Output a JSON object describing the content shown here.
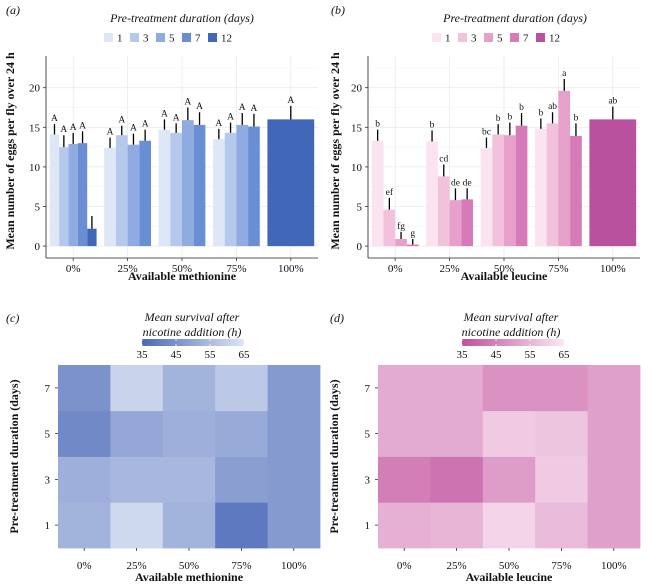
{
  "chart_data": [
    {
      "panel": "(a)",
      "type": "bar",
      "legend_title": "Pre-treatment duration (days)",
      "legend_entries": [
        "1",
        "3",
        "5",
        "7",
        "12"
      ],
      "legend_colors": [
        "#dde7f6",
        "#b5c9ec",
        "#8fabe1",
        "#6a8ed4",
        "#4067b8"
      ],
      "control_color": "#4067b8",
      "categories": [
        "0%",
        "25%",
        "50%",
        "75%",
        "100%"
      ],
      "xlabel": "Available methionine",
      "ylabel": "Mean number of eggs per fly over 24 h",
      "ylim": [
        -1.5,
        24
      ],
      "yticks": [
        0,
        5,
        10,
        15,
        20
      ],
      "groups": [
        {
          "category": "0%",
          "values": [
            14.1,
            12.5,
            12.9,
            13.0,
            2.2
          ],
          "errors": [
            1.3,
            1.5,
            1.4,
            1.5,
            1.6
          ],
          "labels": [
            "A",
            "A",
            "A",
            "A",
            ""
          ]
        },
        {
          "category": "25%",
          "values": [
            12.4,
            14.0,
            12.8,
            13.3,
            null
          ],
          "errors": [
            1.3,
            1.2,
            1.4,
            1.4,
            null
          ],
          "labels": [
            "A",
            "A",
            "A",
            "A",
            ""
          ]
        },
        {
          "category": "50%",
          "values": [
            14.7,
            14.3,
            15.9,
            15.3,
            null
          ],
          "errors": [
            1.3,
            1.2,
            1.6,
            1.6,
            null
          ],
          "labels": [
            "A",
            "A",
            "A",
            "A",
            ""
          ]
        },
        {
          "category": "75%",
          "values": [
            13.5,
            14.3,
            15.3,
            15.1,
            null
          ],
          "errors": [
            1.3,
            1.3,
            1.5,
            1.6,
            null
          ],
          "labels": [
            "A",
            "A",
            "A",
            "A",
            ""
          ]
        }
      ],
      "control": {
        "category": "100%",
        "value": 16.0,
        "error": 1.7,
        "label": "A"
      }
    },
    {
      "panel": "(b)",
      "type": "bar",
      "legend_title": "Pre-treatment duration (days)",
      "legend_entries": [
        "1",
        "3",
        "5",
        "7",
        "12"
      ],
      "legend_colors": [
        "#fbe3f0",
        "#f2c2dc",
        "#e6a0c9",
        "#d67bb7",
        "#b9519f"
      ],
      "control_color": "#b9519f",
      "categories": [
        "0%",
        "25%",
        "50%",
        "75%",
        "100%"
      ],
      "xlabel": "Available leucine",
      "ylabel": "Mean number of eggs per fly over 24 h",
      "ylim": [
        -1.5,
        24
      ],
      "yticks": [
        0,
        5,
        10,
        15,
        20
      ],
      "groups": [
        {
          "category": "0%",
          "values": [
            13.3,
            4.6,
            0.9,
            0.2,
            null
          ],
          "errors": [
            1.4,
            1.5,
            0.9,
            0.7,
            null
          ],
          "labels": [
            "b",
            "ef",
            "fg",
            "g",
            ""
          ]
        },
        {
          "category": "25%",
          "values": [
            13.2,
            8.8,
            5.8,
            5.9,
            null
          ],
          "errors": [
            1.4,
            1.5,
            1.5,
            1.4,
            null
          ],
          "labels": [
            "b",
            "cd",
            "de",
            "de",
            ""
          ]
        },
        {
          "category": "50%",
          "values": [
            12.4,
            14.1,
            14.0,
            15.2,
            null
          ],
          "errors": [
            1.3,
            1.3,
            1.6,
            1.6,
            null
          ],
          "labels": [
            "bc",
            "b",
            "b",
            "b",
            ""
          ]
        },
        {
          "category": "75%",
          "values": [
            14.8,
            15.5,
            19.6,
            13.9,
            null
          ],
          "errors": [
            1.3,
            1.4,
            1.5,
            1.6,
            null
          ],
          "labels": [
            "b",
            "ab",
            "a",
            "b",
            ""
          ]
        }
      ],
      "control": {
        "category": "100%",
        "value": 16.0,
        "error": 1.6,
        "label": "ab"
      }
    },
    {
      "panel": "(c)",
      "type": "heatmap",
      "legend_title_line1": "Mean survival after",
      "legend_title_line2": "nicotine addition (h)",
      "legend_ticks": [
        "35",
        "45",
        "55",
        "65"
      ],
      "scale_min": 35,
      "scale_max": 65,
      "scale_low_color": "#4a68b7",
      "scale_high_color": "#dde5f4",
      "x_categories": [
        "0%",
        "25%",
        "50%",
        "75%",
        "100%"
      ],
      "y_categories": [
        "1",
        "3",
        "5",
        "7"
      ],
      "xlabel": "Available methionine",
      "ylabel": "Pre-treatment duration (days)",
      "values": [
        [
          53,
          62,
          53,
          39,
          47
        ],
        [
          52,
          54,
          54,
          48,
          47
        ],
        [
          43,
          50,
          52,
          51,
          47
        ],
        [
          45,
          61,
          53,
          58,
          47
        ]
      ]
    },
    {
      "panel": "(d)",
      "type": "heatmap",
      "legend_title_line1": "Mean survival after",
      "legend_title_line2": "nicotine addition (h)",
      "legend_ticks": [
        "35",
        "45",
        "55",
        "65"
      ],
      "scale_min": 35,
      "scale_max": 65,
      "scale_low_color": "#c0509d",
      "scale_high_color": "#fbe8f3",
      "x_categories": [
        "0%",
        "25%",
        "50%",
        "75%",
        "100%"
      ],
      "y_categories": [
        "1",
        "3",
        "5",
        "7"
      ],
      "xlabel": "Available leucine",
      "ylabel": "Pre-treatment duration (days)",
      "values": [
        [
          54,
          55,
          61,
          56,
          51
        ],
        [
          44,
          42,
          50,
          59,
          51
        ],
        [
          53,
          53,
          59,
          58,
          51
        ],
        [
          53,
          53,
          48,
          48,
          51
        ]
      ]
    }
  ]
}
